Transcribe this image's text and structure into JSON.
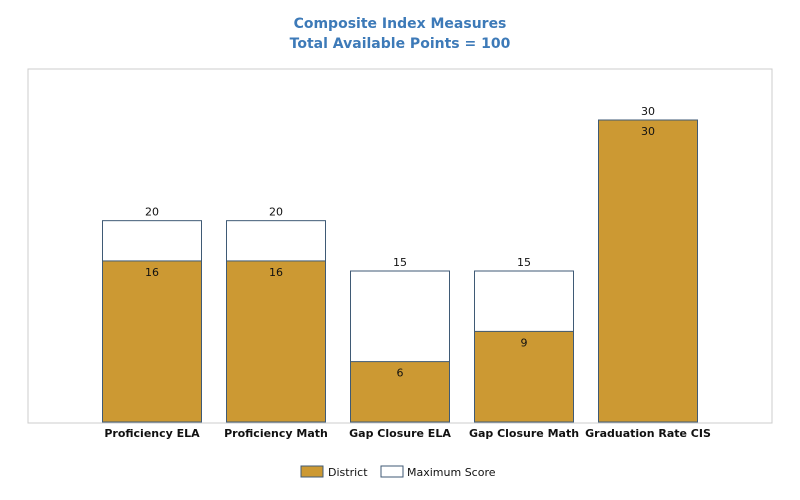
{
  "chart_data": {
    "type": "bar",
    "title": "Composite Index Measures",
    "subtitle": "Total Available Points = 100",
    "categories": [
      "Proficiency ELA",
      "Proficiency Math",
      "Gap Closure ELA",
      "Gap Closure Math",
      "Graduation Rate CIS"
    ],
    "series": [
      {
        "name": "District",
        "values": [
          16,
          16,
          6,
          9,
          30
        ],
        "color": "#cc9933"
      },
      {
        "name": "Maximum Score",
        "values": [
          20,
          20,
          15,
          15,
          30
        ],
        "color": "#ffffff"
      }
    ],
    "ylim": [
      0,
      30
    ],
    "xlabel": "",
    "ylabel": "",
    "grid": false,
    "legend": "bottom-center",
    "border_color": "#3f5a75"
  }
}
